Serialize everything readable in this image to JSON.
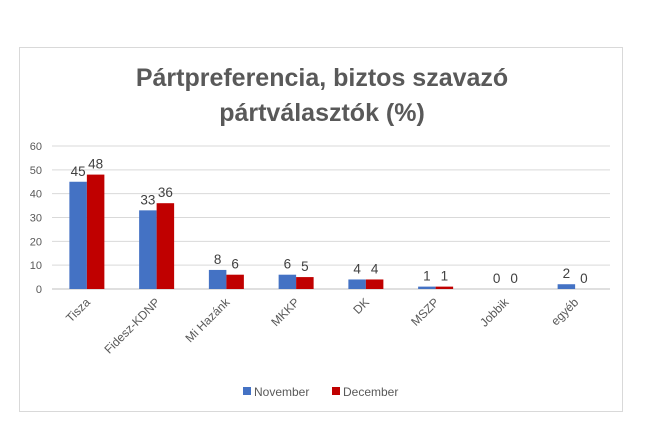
{
  "chart_data": {
    "type": "bar",
    "title_lines": [
      "Pártpreferencia, biztos szavazó",
      "pártválasztók (%)"
    ],
    "categories": [
      "Tisza",
      "Fidesz-KDNP",
      "Mi Hazánk",
      "MKKP",
      "DK",
      "MSZP",
      "Jobbik",
      "egyéb"
    ],
    "series": [
      {
        "name": "November",
        "values": [
          45,
          33,
          8,
          6,
          4,
          1,
          0,
          2
        ],
        "color": "#4472c4"
      },
      {
        "name": "December",
        "values": [
          48,
          36,
          6,
          5,
          4,
          1,
          0,
          0
        ],
        "color": "#c00000"
      }
    ],
    "ylim": [
      0,
      60
    ],
    "yticks": [
      0,
      10,
      20,
      30,
      40,
      50,
      60
    ],
    "grid": true,
    "legend": "bottom",
    "xlabel": "",
    "ylabel": ""
  }
}
